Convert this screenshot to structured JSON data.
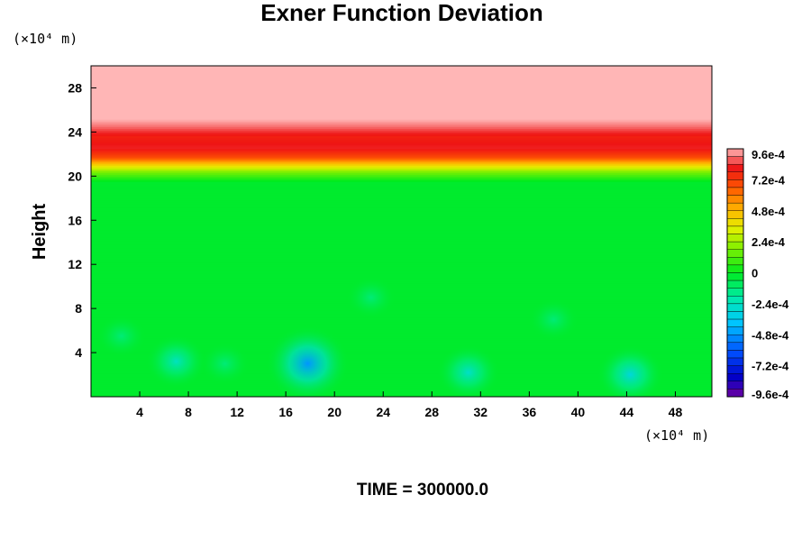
{
  "chart_data": {
    "type": "heatmap",
    "title": "Exner Function Deviation",
    "ylabel": "Height",
    "xlabel": "",
    "x_unit": "(×10⁴ m)",
    "y_unit": "(×10⁴ m)",
    "footer": "TIME = 300000.0",
    "xlim": [
      0,
      51
    ],
    "ylim": [
      0,
      30
    ],
    "x_ticks": [
      4,
      8,
      12,
      16,
      20,
      24,
      28,
      32,
      36,
      40,
      44,
      48
    ],
    "x_tick_labels": [
      "4",
      "8",
      "12",
      "16",
      "20",
      "24",
      "28",
      "32",
      "36",
      "40",
      "44",
      "48"
    ],
    "y_ticks": [
      4,
      8,
      12,
      16,
      20,
      24,
      28
    ],
    "y_tick_labels": [
      "4",
      "8",
      "12",
      "16",
      "20",
      "24",
      "28"
    ],
    "colorbar": {
      "range": [
        -0.00096,
        0.00096
      ],
      "levels": 32,
      "tick_values": [
        0.00096,
        0.00072,
        0.00048,
        0.00024,
        0,
        -0.00024,
        -0.00048,
        -0.00072,
        -0.00096
      ],
      "tick_labels": [
        "9.6e-4",
        "7.2e-4",
        "4.8e-4",
        "2.4e-4",
        "0",
        "-2.4e-4",
        "-4.8e-4",
        "-7.2e-4",
        "-9.6e-4"
      ]
    },
    "field": {
      "vertical_profile": [
        {
          "height": 0,
          "value": -2e-05
        },
        {
          "height": 19.5,
          "value": -2e-05
        },
        {
          "height": 20.4,
          "value": 0.00018
        },
        {
          "height": 21.0,
          "value": 0.0004
        },
        {
          "height": 21.7,
          "value": 0.00068
        },
        {
          "height": 22.6,
          "value": 0.00082
        },
        {
          "height": 23.6,
          "value": 0.00078
        },
        {
          "height": 24.6,
          "value": 0.0009
        },
        {
          "height": 25.4,
          "value": 0.00098
        },
        {
          "height": 30,
          "value": 0.00098
        }
      ],
      "anomalies": [
        {
          "x": 17.8,
          "height": 3.0,
          "value": -0.00048
        },
        {
          "x": 7.0,
          "height": 3.2,
          "value": -0.00024
        },
        {
          "x": 31.0,
          "height": 2.2,
          "value": -0.00026
        },
        {
          "x": 44.3,
          "height": 2.0,
          "value": -0.0003
        },
        {
          "x": 2.5,
          "height": 5.5,
          "value": -0.00012
        },
        {
          "x": 11.0,
          "height": 3.0,
          "value": -0.00012
        },
        {
          "x": 23.0,
          "height": 9.0,
          "value": -0.00012
        },
        {
          "x": 38.0,
          "height": 7.0,
          "value": -0.00012
        }
      ]
    }
  }
}
